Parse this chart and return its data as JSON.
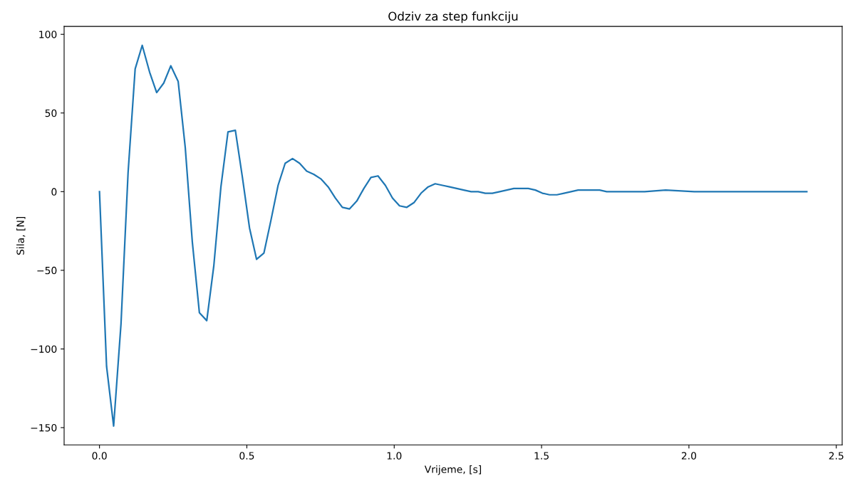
{
  "chart_data": {
    "type": "line",
    "title": "Odziv za step funkciju",
    "xlabel": "Vrijeme, [s]",
    "ylabel": "Sila, [N]",
    "x": [
      0,
      0.024,
      0.048,
      0.073,
      0.097,
      0.121,
      0.145,
      0.17,
      0.194,
      0.218,
      0.242,
      0.267,
      0.291,
      0.315,
      0.339,
      0.364,
      0.388,
      0.412,
      0.436,
      0.461,
      0.485,
      0.509,
      0.533,
      0.558,
      0.582,
      0.606,
      0.63,
      0.655,
      0.679,
      0.703,
      0.727,
      0.752,
      0.776,
      0.8,
      0.824,
      0.848,
      0.873,
      0.897,
      0.921,
      0.945,
      0.97,
      0.994,
      1.018,
      1.042,
      1.067,
      1.091,
      1.115,
      1.139,
      1.164,
      1.188,
      1.212,
      1.236,
      1.261,
      1.285,
      1.309,
      1.333,
      1.358,
      1.382,
      1.406,
      1.43,
      1.455,
      1.479,
      1.503,
      1.527,
      1.552,
      1.576,
      1.6,
      1.624,
      1.648,
      1.673,
      1.697,
      1.721,
      1.85,
      1.921,
      2.018,
      2.161,
      2.4
    ],
    "series": [
      {
        "color": "#1f77b4",
        "values": [
          0,
          -111,
          -149,
          -84,
          12,
          78,
          93,
          76,
          63,
          69,
          80,
          70,
          28,
          -32,
          -77,
          -82,
          -47,
          3,
          38,
          39,
          9,
          -23,
          -43,
          -39,
          -18,
          4,
          18,
          21,
          18,
          13,
          11,
          8,
          3,
          -4,
          -10,
          -11,
          -6,
          2,
          9,
          10,
          4,
          -4,
          -9,
          -10,
          -7,
          -1,
          3,
          5,
          4,
          3,
          2,
          1,
          0,
          0,
          -1,
          -1,
          0,
          1,
          2,
          2,
          2,
          1,
          -1,
          -2,
          -2,
          -1,
          0,
          1,
          1,
          1,
          1,
          0,
          0,
          1,
          0,
          0,
          0
        ]
      }
    ],
    "xlim": [
      -0.12,
      2.52
    ],
    "ylim": [
      -161,
      105
    ],
    "xticks": [
      {
        "value": 0,
        "label": "0.0"
      },
      {
        "value": 0.5,
        "label": "0.5"
      },
      {
        "value": 1,
        "label": "1.0"
      },
      {
        "value": 1.5,
        "label": "1.5"
      },
      {
        "value": 2,
        "label": "2.0"
      },
      {
        "value": 2.5,
        "label": "2.5"
      }
    ],
    "yticks": [
      {
        "value": -150,
        "label": "−150"
      },
      {
        "value": -100,
        "label": "−100"
      },
      {
        "value": -50,
        "label": "−50"
      },
      0,
      50,
      100
    ],
    "grid": false,
    "marker": "none",
    "line_style": "solid"
  }
}
